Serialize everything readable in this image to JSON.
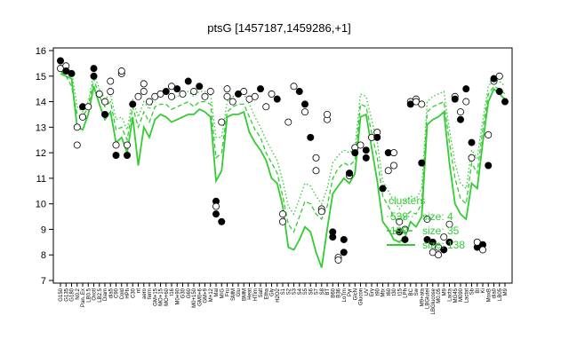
{
  "chart_data": {
    "type": "line",
    "title": "ptsG [1457187,1459286,+1]",
    "xlabel": "",
    "ylabel": "",
    "ylim": [
      7,
      16
    ],
    "yticks": [
      7,
      8,
      9,
      10,
      11,
      12,
      13,
      14,
      15,
      16
    ],
    "grid": false,
    "legend_position": "right",
    "legend_title": "clusters",
    "legend": [
      {
        "label": "size: 4",
        "cluster": "539",
        "style": "dotted",
        "width": 1
      },
      {
        "label": "size: 35",
        "cluster": "190",
        "style": "dashed",
        "width": 1.5
      },
      {
        "label": "size: 138",
        "cluster": "",
        "style": "solid",
        "width": 2
      }
    ],
    "colors": {
      "series": "#33cc33",
      "point_fill": "#000000",
      "point_open": "#ffffff"
    },
    "x_category_labels": [
      "G150",
      "G135",
      "G180",
      "N0.2",
      "Pan..Ex",
      "LB0.5",
      "Oxctl",
      "LB2.5",
      "Diam",
      "dia5",
      "C90",
      "Cold",
      "HPh",
      "C30",
      "nt",
      "aero",
      "ferm",
      "GM+15",
      "MO+15",
      "MO+60",
      "t16",
      "M0+90",
      "G30",
      "G60",
      "M0+150",
      "GM0+6",
      "GM+9",
      "M+12",
      "Mal",
      "M/G",
      "Fru",
      "SMM",
      "Glu",
      "BMM",
      "Heat",
      "HTim",
      "Salt",
      "Etha",
      "Gly",
      "H2O2",
      "S1",
      "S2",
      "S3",
      "S4",
      "S5",
      "S6",
      "S7",
      "S8",
      "BT",
      "B60",
      "B36",
      "LoTm",
      "Pyr",
      "GlcN",
      "Glucon",
      "UV",
      "Ery",
      "t90",
      "Mtx",
      "t60",
      "t30",
      "t15",
      "LPh",
      "BC",
      "Sw",
      "M9+ata",
      "LBGlutel",
      "LBGlucose",
      "M0.05",
      "M9",
      "Lacta",
      "MG45",
      "M090",
      "Lactat",
      "Sb",
      "BI",
      "Ki",
      "MoxB",
      "dia0",
      "LB05",
      "M9"
    ],
    "series": [
      {
        "style": "solid",
        "y": [
          15.1,
          15.0,
          14.9,
          13.0,
          12.9,
          13.5,
          14.6,
          13.9,
          13.3,
          13.6,
          12.4,
          12.6,
          12.0,
          13.4,
          11.5,
          13.0,
          12.6,
          13.3,
          13.5,
          13.4,
          13.2,
          13.3,
          13.4,
          13.5,
          13.5,
          13.7,
          13.6,
          13.4,
          10.9,
          11.3,
          13.4,
          13.5,
          13.5,
          13.6,
          12.8,
          12.4,
          12.1,
          11.7,
          11.0,
          10.8,
          9.9,
          8.3,
          8.2,
          8.6,
          9.1,
          8.9,
          8.1,
          7.5,
          9.0,
          10.4,
          10.7,
          11.0,
          10.8,
          11.2,
          13.4,
          13.5,
          12.2,
          10.9,
          9.3,
          9.0,
          8.6,
          8.5,
          8.7,
          9.3,
          9.1,
          9.5,
          13.1,
          13.3,
          13.4,
          13.6,
          11.6,
          10.0,
          9.6,
          9.4,
          10.8,
          10.6,
          12.4,
          14.0,
          14.5,
          14.3,
          14.1
        ]
      },
      {
        "style": "dashed",
        "y": [
          15.2,
          15.0,
          14.6,
          13.5,
          13.4,
          13.8,
          14.9,
          14.2,
          13.8,
          14.0,
          12.9,
          13.0,
          12.5,
          13.8,
          13.0,
          13.6,
          13.2,
          13.8,
          13.9,
          13.9,
          13.7,
          13.8,
          13.9,
          14.0,
          13.8,
          14.0,
          14.0,
          13.9,
          11.8,
          12.0,
          13.6,
          13.8,
          13.9,
          13.9,
          13.4,
          12.9,
          12.6,
          12.0,
          11.6,
          11.2,
          10.3,
          9.2,
          8.9,
          9.5,
          10.1,
          10.0,
          9.6,
          9.4,
          9.9,
          11.0,
          11.4,
          11.6,
          11.5,
          11.7,
          13.9,
          13.8,
          12.8,
          11.8,
          10.3,
          9.9,
          9.5,
          9.2,
          9.5,
          9.7,
          9.6,
          10.0,
          13.6,
          13.8,
          13.9,
          14.0,
          12.4,
          11.0,
          10.2,
          10.0,
          11.6,
          11.2,
          12.9,
          14.3,
          14.6,
          14.5,
          14.3
        ]
      },
      {
        "style": "dotted",
        "y": [
          15.5,
          15.3,
          15.2,
          13.8,
          13.6,
          14.0,
          15.1,
          14.5,
          14.1,
          14.3,
          13.3,
          13.4,
          12.9,
          14.1,
          13.4,
          14.0,
          13.7,
          14.2,
          14.3,
          14.3,
          14.1,
          14.2,
          14.3,
          14.4,
          14.2,
          14.4,
          14.4,
          14.3,
          12.6,
          12.6,
          14.0,
          14.2,
          14.3,
          14.3,
          13.9,
          13.4,
          13.0,
          12.5,
          12.1,
          11.7,
          10.9,
          9.9,
          9.6,
          10.2,
          10.8,
          10.7,
          10.3,
          10.0,
          10.6,
          11.6,
          11.9,
          12.1,
          12.0,
          12.2,
          14.3,
          14.2,
          13.3,
          12.4,
          10.9,
          10.5,
          10.1,
          9.8,
          10.1,
          10.3,
          10.2,
          10.6,
          14.0,
          14.2,
          14.3,
          14.4,
          12.9,
          11.6,
          10.8,
          10.6,
          12.1,
          11.8,
          13.3,
          14.6,
          14.9,
          14.8,
          14.6
        ]
      }
    ],
    "points": [
      {
        "x": 0,
        "y": 15.6,
        "filled": true
      },
      {
        "x": 0,
        "y": 15.3,
        "filled": false
      },
      {
        "x": 1,
        "y": 15.4,
        "filled": false
      },
      {
        "x": 1,
        "y": 15.2,
        "filled": true
      },
      {
        "x": 2,
        "y": 15.1,
        "filled": true
      },
      {
        "x": 3,
        "y": 12.3,
        "filled": false
      },
      {
        "x": 3,
        "y": 13.0,
        "filled": false
      },
      {
        "x": 4,
        "y": 13.8,
        "filled": true
      },
      {
        "x": 4,
        "y": 13.4,
        "filled": false
      },
      {
        "x": 5,
        "y": 13.8,
        "filled": false
      },
      {
        "x": 6,
        "y": 15.3,
        "filled": true
      },
      {
        "x": 6,
        "y": 15.0,
        "filled": true
      },
      {
        "x": 7,
        "y": 14.3,
        "filled": false
      },
      {
        "x": 8,
        "y": 13.5,
        "filled": true
      },
      {
        "x": 8,
        "y": 14.0,
        "filled": false
      },
      {
        "x": 9,
        "y": 14.8,
        "filled": false
      },
      {
        "x": 9,
        "y": 14.4,
        "filled": false
      },
      {
        "x": 10,
        "y": 11.9,
        "filled": true
      },
      {
        "x": 10,
        "y": 12.3,
        "filled": false
      },
      {
        "x": 11,
        "y": 15.1,
        "filled": false
      },
      {
        "x": 11,
        "y": 15.2,
        "filled": false
      },
      {
        "x": 12,
        "y": 12.3,
        "filled": false
      },
      {
        "x": 12,
        "y": 11.9,
        "filled": true
      },
      {
        "x": 13,
        "y": 13.9,
        "filled": true
      },
      {
        "x": 14,
        "y": 14.2,
        "filled": false
      },
      {
        "x": 15,
        "y": 14.7,
        "filled": false
      },
      {
        "x": 15,
        "y": 14.4,
        "filled": false
      },
      {
        "x": 16,
        "y": 14.0,
        "filled": false
      },
      {
        "x": 17,
        "y": 14.2,
        "filled": false
      },
      {
        "x": 18,
        "y": 14.3,
        "filled": false
      },
      {
        "x": 19,
        "y": 14.4,
        "filled": true
      },
      {
        "x": 20,
        "y": 14.6,
        "filled": false
      },
      {
        "x": 20,
        "y": 14.2,
        "filled": false
      },
      {
        "x": 21,
        "y": 14.5,
        "filled": true
      },
      {
        "x": 22,
        "y": 14.3,
        "filled": false
      },
      {
        "x": 23,
        "y": 14.8,
        "filled": true
      },
      {
        "x": 24,
        "y": 14.4,
        "filled": false
      },
      {
        "x": 25,
        "y": 14.6,
        "filled": true
      },
      {
        "x": 26,
        "y": 14.2,
        "filled": false
      },
      {
        "x": 27,
        "y": 14.4,
        "filled": false
      },
      {
        "x": 28,
        "y": 10.1,
        "filled": true
      },
      {
        "x": 28,
        "y": 9.6,
        "filled": true
      },
      {
        "x": 28,
        "y": 9.9,
        "filled": false
      },
      {
        "x": 29,
        "y": 13.2,
        "filled": false
      },
      {
        "x": 29,
        "y": 9.3,
        "filled": true
      },
      {
        "x": 30,
        "y": 14.5,
        "filled": false
      },
      {
        "x": 30,
        "y": 14.2,
        "filled": false
      },
      {
        "x": 31,
        "y": 14.0,
        "filled": false
      },
      {
        "x": 32,
        "y": 14.3,
        "filled": true
      },
      {
        "x": 33,
        "y": 14.4,
        "filled": false
      },
      {
        "x": 34,
        "y": 14.1,
        "filled": false
      },
      {
        "x": 35,
        "y": 14.2,
        "filled": false
      },
      {
        "x": 36,
        "y": 14.5,
        "filled": true
      },
      {
        "x": 37,
        "y": 13.8,
        "filled": false
      },
      {
        "x": 38,
        "y": 14.3,
        "filled": false
      },
      {
        "x": 39,
        "y": 14.1,
        "filled": true
      },
      {
        "x": 40,
        "y": 9.3,
        "filled": false
      },
      {
        "x": 40,
        "y": 9.6,
        "filled": false
      },
      {
        "x": 41,
        "y": 13.2,
        "filled": false
      },
      {
        "x": 42,
        "y": 14.6,
        "filled": false
      },
      {
        "x": 43,
        "y": 14.4,
        "filled": true
      },
      {
        "x": 44,
        "y": 13.6,
        "filled": false
      },
      {
        "x": 44,
        "y": 13.9,
        "filled": true
      },
      {
        "x": 45,
        "y": 12.6,
        "filled": true
      },
      {
        "x": 46,
        "y": 11.3,
        "filled": false
      },
      {
        "x": 46,
        "y": 11.8,
        "filled": false
      },
      {
        "x": 47,
        "y": 9.8,
        "filled": false
      },
      {
        "x": 47,
        "y": 9.7,
        "filled": false
      },
      {
        "x": 48,
        "y": 13.3,
        "filled": false
      },
      {
        "x": 48,
        "y": 13.5,
        "filled": false
      },
      {
        "x": 49,
        "y": 8.9,
        "filled": true
      },
      {
        "x": 49,
        "y": 8.7,
        "filled": true
      },
      {
        "x": 50,
        "y": 7.9,
        "filled": false
      },
      {
        "x": 50,
        "y": 7.8,
        "filled": false
      },
      {
        "x": 51,
        "y": 8.6,
        "filled": true
      },
      {
        "x": 51,
        "y": 8.1,
        "filled": true
      },
      {
        "x": 52,
        "y": 11.1,
        "filled": false
      },
      {
        "x": 52,
        "y": 11.2,
        "filled": true
      },
      {
        "x": 53,
        "y": 12.2,
        "filled": false
      },
      {
        "x": 53,
        "y": 12.0,
        "filled": true
      },
      {
        "x": 54,
        "y": 12.3,
        "filled": false
      },
      {
        "x": 55,
        "y": 11.8,
        "filled": true
      },
      {
        "x": 55,
        "y": 12.1,
        "filled": true
      },
      {
        "x": 56,
        "y": 12.6,
        "filled": false
      },
      {
        "x": 57,
        "y": 12.8,
        "filled": false
      },
      {
        "x": 57,
        "y": 12.6,
        "filled": true
      },
      {
        "x": 58,
        "y": 10.6,
        "filled": true
      },
      {
        "x": 59,
        "y": 11.3,
        "filled": false
      },
      {
        "x": 59,
        "y": 12.0,
        "filled": true
      },
      {
        "x": 60,
        "y": 11.5,
        "filled": false
      },
      {
        "x": 60,
        "y": 12.0,
        "filled": false
      },
      {
        "x": 61,
        "y": 9.3,
        "filled": false
      },
      {
        "x": 61,
        "y": 8.9,
        "filled": true
      },
      {
        "x": 62,
        "y": 8.6,
        "filled": true
      },
      {
        "x": 62,
        "y": 9.0,
        "filled": false
      },
      {
        "x": 63,
        "y": 14.0,
        "filled": false
      },
      {
        "x": 63,
        "y": 13.9,
        "filled": true
      },
      {
        "x": 64,
        "y": 14.1,
        "filled": false
      },
      {
        "x": 64,
        "y": 14.0,
        "filled": false
      },
      {
        "x": 65,
        "y": 13.9,
        "filled": false
      },
      {
        "x": 65,
        "y": 11.6,
        "filled": true
      },
      {
        "x": 66,
        "y": 9.4,
        "filled": false
      },
      {
        "x": 66,
        "y": 8.6,
        "filled": true
      },
      {
        "x": 67,
        "y": 8.1,
        "filled": false
      },
      {
        "x": 67,
        "y": 8.5,
        "filled": true
      },
      {
        "x": 68,
        "y": 8.3,
        "filled": false
      },
      {
        "x": 68,
        "y": 8.0,
        "filled": false
      },
      {
        "x": 69,
        "y": 8.2,
        "filled": true
      },
      {
        "x": 69,
        "y": 8.7,
        "filled": false
      },
      {
        "x": 70,
        "y": 9.2,
        "filled": false
      },
      {
        "x": 70,
        "y": 8.5,
        "filled": true
      },
      {
        "x": 71,
        "y": 14.2,
        "filled": false
      },
      {
        "x": 71,
        "y": 14.1,
        "filled": true
      },
      {
        "x": 72,
        "y": 13.3,
        "filled": true
      },
      {
        "x": 72,
        "y": 13.6,
        "filled": false
      },
      {
        "x": 73,
        "y": 14.5,
        "filled": true
      },
      {
        "x": 73,
        "y": 14.0,
        "filled": false
      },
      {
        "x": 74,
        "y": 12.4,
        "filled": true
      },
      {
        "x": 74,
        "y": 11.8,
        "filled": false
      },
      {
        "x": 75,
        "y": 8.3,
        "filled": true
      },
      {
        "x": 75,
        "y": 8.5,
        "filled": false
      },
      {
        "x": 76,
        "y": 8.4,
        "filled": true
      },
      {
        "x": 76,
        "y": 8.2,
        "filled": false
      },
      {
        "x": 77,
        "y": 11.5,
        "filled": true
      },
      {
        "x": 77,
        "y": 12.7,
        "filled": false
      },
      {
        "x": 78,
        "y": 14.8,
        "filled": false
      },
      {
        "x": 78,
        "y": 14.9,
        "filled": true
      },
      {
        "x": 79,
        "y": 15.0,
        "filled": false
      },
      {
        "x": 79,
        "y": 14.4,
        "filled": true
      },
      {
        "x": 80,
        "y": 14.0,
        "filled": true
      }
    ]
  }
}
